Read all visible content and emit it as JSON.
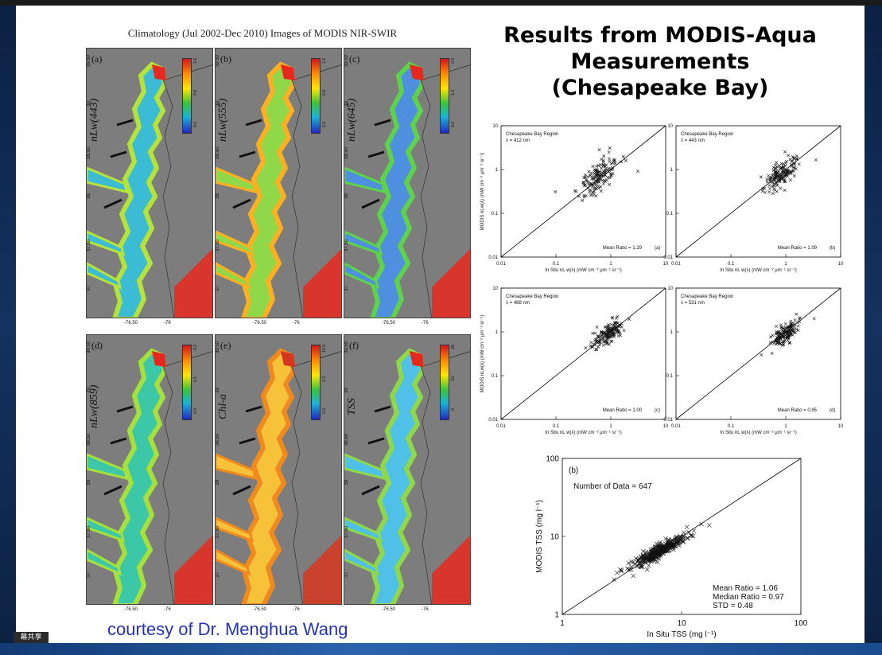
{
  "watermark": "幕共享",
  "slide": {
    "figure_caption": "Climatology (Jul 2002-Dec 2010) Images of MODIS NIR-SWIR",
    "title_lines": [
      "Results from MODIS-Aqua",
      "Measurements",
      "(Chesapeake Bay)"
    ],
    "courtesy": "courtesy of Dr. Menghua Wang",
    "map_panels": [
      {
        "label": "(a)",
        "param": "nLw(443)",
        "cb_ticks": [
          "0.0",
          "0.8",
          "1.6"
        ],
        "lat_ticks": [
          "39.50",
          "39",
          "38.50",
          "38",
          "37.50",
          "37"
        ],
        "lon_ticks": [
          "-76.50",
          "-76"
        ],
        "colors": {
          "bay": "#3bbcd4",
          "edge": "#b5e33a",
          "hot": "#e8281e"
        }
      },
      {
        "label": "(b)",
        "param": "nLw(555)",
        "cb_ticks": [
          "0.0",
          "0.8",
          "1.6"
        ],
        "lat_ticks": [
          "39.50",
          "39",
          "38.50",
          "38",
          "37.50",
          "37"
        ],
        "lon_ticks": [
          "-76.50",
          "-76"
        ],
        "colors": {
          "bay": "#8fd84a",
          "edge": "#ffb020",
          "hot": "#e8281e"
        }
      },
      {
        "label": "(c)",
        "param": "nLw(645)",
        "cb_ticks": [
          "0.0",
          "1.0",
          "2.0"
        ],
        "lat_ticks": [
          "39.50",
          "39",
          "38.50",
          "38",
          "37.50",
          "37"
        ],
        "lon_ticks": [
          "-76.50",
          "-76"
        ],
        "colors": {
          "bay": "#4e8fe0",
          "edge": "#5dd24a",
          "hot": "#e8281e"
        }
      },
      {
        "label": "(d)",
        "param": "nLw(859)",
        "cb_ticks": [
          "0.0",
          "0.1",
          "0.2"
        ],
        "lat_ticks": [
          "39.50",
          "39",
          "38.50",
          "38",
          "37.50",
          "37"
        ],
        "lon_ticks": [
          "-76.50",
          "-76"
        ],
        "colors": {
          "bay": "#3bc7a8",
          "edge": "#a6e03a",
          "hot": "#e8281e"
        }
      },
      {
        "label": "(e)",
        "param": "Chl-a",
        "cb_ticks": [
          "0.0",
          "1.0",
          "10.0"
        ],
        "lat_ticks": [
          "39.50",
          "39",
          "38.50",
          "38",
          "37.50",
          "37"
        ],
        "lon_ticks": [
          "-76.50",
          "-76"
        ],
        "colors": {
          "bay": "#f5c23a",
          "edge": "#f08a1e",
          "hot": "#d7361e"
        }
      },
      {
        "label": "(f)",
        "param": "TSS",
        "cb_ticks": [
          "0",
          "10",
          "20"
        ],
        "lat_ticks": [
          "39.50",
          "39",
          "38.50",
          "38",
          "37.50",
          "37"
        ],
        "lon_ticks": [
          "-76.50",
          "-76"
        ],
        "colors": {
          "bay": "#4fc0e8",
          "edge": "#8fd84a",
          "hot": "#e8281e"
        }
      }
    ]
  },
  "chart_data": [
    {
      "type": "scatter",
      "region": "Chesapeake Bay Region",
      "wavelength": "λ = 412 nm",
      "panel": "(a)",
      "mean_ratio": "Mean Ratio = 1.29",
      "xlabel": "In Situ nL w(λ) (mW cm⁻² µm⁻¹ sr⁻¹)",
      "ylabel": "MODIS nLw(λ) (mW cm⁻² µm⁻¹ sr⁻¹)",
      "scale": "log",
      "xlim": [
        0.01,
        10
      ],
      "ylim": [
        0.01,
        10
      ],
      "x_ticks": [
        "0.01",
        "0.1",
        "1",
        "10"
      ],
      "y_ticks": [
        "0.01",
        "0.1",
        "1",
        "10"
      ],
      "one_to_one_line": true,
      "cluster": {
        "x_center": 0.6,
        "y_center": 0.7,
        "x_spread": 0.55,
        "y_spread": 0.75,
        "n": 150,
        "seed": 11
      }
    },
    {
      "type": "scatter",
      "region": "Chesapeake Bay Region",
      "wavelength": "λ = 443 nm",
      "panel": "(b)",
      "mean_ratio": "Mean Ratio = 1.09",
      "xlabel": "In Situ nL w(λ) (mW cm⁻² µm⁻¹ sr⁻¹)",
      "ylabel": "",
      "scale": "log",
      "xlim": [
        0.01,
        10
      ],
      "ylim": [
        0.01,
        10
      ],
      "x_ticks": [
        "0.01",
        "0.1",
        "1",
        "10"
      ],
      "y_ticks": [
        "0.01",
        "0.1",
        "1",
        "10"
      ],
      "one_to_one_line": true,
      "cluster": {
        "x_center": 0.8,
        "y_center": 0.8,
        "x_spread": 0.45,
        "y_spread": 0.6,
        "n": 150,
        "seed": 23
      }
    },
    {
      "type": "scatter",
      "region": "Chesapeake Bay Region",
      "wavelength": "λ = 488 nm",
      "panel": "(c)",
      "mean_ratio": "Mean Ratio = 1.00",
      "xlabel": "In Situ nL w(λ) (mW cm⁻² µm⁻¹ sr⁻¹)",
      "ylabel": "MODIS nLw(λ) (mW cm⁻² µm⁻¹ sr⁻¹)",
      "scale": "log",
      "xlim": [
        0.01,
        10
      ],
      "ylim": [
        0.01,
        10
      ],
      "x_ticks": [
        "0.01",
        "0.1",
        "1",
        "10"
      ],
      "y_ticks": [
        "0.01",
        "0.1",
        "1",
        "10"
      ],
      "one_to_one_line": true,
      "cluster": {
        "x_center": 0.9,
        "y_center": 0.9,
        "x_spread": 0.4,
        "y_spread": 0.45,
        "n": 150,
        "seed": 37
      }
    },
    {
      "type": "scatter",
      "region": "Chesapeake Bay Region",
      "wavelength": "λ = 531 nm",
      "panel": "(d)",
      "mean_ratio": "Mean Ratio = 0.95",
      "xlabel": "In Situ nL w(λ) (mW cm⁻² µm⁻¹ sr⁻¹)",
      "ylabel": "",
      "scale": "log",
      "xlim": [
        0.01,
        10
      ],
      "ylim": [
        0.01,
        10
      ],
      "x_ticks": [
        "0.01",
        "0.1",
        "1",
        "10"
      ],
      "y_ticks": [
        "0.01",
        "0.1",
        "1",
        "10"
      ],
      "one_to_one_line": true,
      "cluster": {
        "x_center": 1.0,
        "y_center": 0.95,
        "x_spread": 0.38,
        "y_spread": 0.4,
        "n": 150,
        "seed": 53
      }
    },
    {
      "type": "scatter",
      "panel": "(b)",
      "count_label": "Number of Data = 647",
      "stats": [
        "Mean Ratio = 1.06",
        "Median Ratio = 0.97",
        "STD = 0.48"
      ],
      "xlabel": "In Situ TSS (mg l⁻¹)",
      "ylabel": "MODIS TSS (mg l⁻¹)",
      "scale": "log",
      "xlim": [
        1,
        100
      ],
      "ylim": [
        1,
        100
      ],
      "x_ticks": [
        "1",
        "10",
        "100"
      ],
      "y_ticks": [
        "1",
        "10",
        "100"
      ],
      "one_to_one_line": true,
      "cluster": {
        "x_center": 6.5,
        "y_center": 6.5,
        "x_spread": 0.35,
        "y_spread": 0.18,
        "n": 320,
        "seed": 71
      }
    }
  ]
}
